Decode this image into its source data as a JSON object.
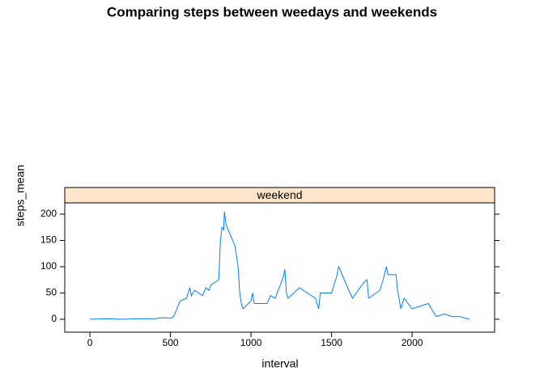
{
  "chart_data": {
    "type": "line",
    "title": "Comparing steps between weedays and weekends",
    "panel": "weekend",
    "xlabel": "interval",
    "ylabel": "steps_mean",
    "x": [
      0,
      100,
      200,
      300,
      400,
      450,
      500,
      520,
      540,
      560,
      600,
      620,
      630,
      650,
      700,
      720,
      740,
      750,
      800,
      810,
      820,
      830,
      835,
      845,
      900,
      920,
      930,
      940,
      950,
      1000,
      1010,
      1020,
      1100,
      1120,
      1150,
      1200,
      1210,
      1220,
      1230,
      1300,
      1400,
      1420,
      1430,
      1500,
      1530,
      1545,
      1600,
      1630,
      1700,
      1720,
      1730,
      1800,
      1820,
      1840,
      1850,
      1900,
      1910,
      1930,
      1950,
      2000,
      2100,
      2150,
      2200,
      2250,
      2300,
      2355
    ],
    "series": [
      {
        "name": "weekend",
        "color": "#0080ff",
        "values": [
          0,
          1,
          0,
          1,
          1,
          3,
          2,
          5,
          20,
          35,
          40,
          60,
          45,
          55,
          45,
          60,
          55,
          65,
          75,
          150,
          175,
          170,
          205,
          180,
          140,
          100,
          50,
          30,
          20,
          35,
          50,
          30,
          30,
          45,
          40,
          80,
          95,
          50,
          40,
          60,
          40,
          20,
          50,
          50,
          80,
          100,
          60,
          40,
          70,
          75,
          40,
          55,
          75,
          100,
          85,
          85,
          55,
          20,
          40,
          20,
          30,
          5,
          10,
          5,
          5,
          0
        ]
      }
    ],
    "xlim": [
      -156,
      2512
    ],
    "ylim": [
      -24.6,
      221.5
    ],
    "xticks": [
      0,
      500,
      1000,
      1500,
      2000
    ],
    "yticks": [
      0,
      50,
      100,
      150,
      200
    ],
    "strip_color": "#ffe5cc"
  }
}
